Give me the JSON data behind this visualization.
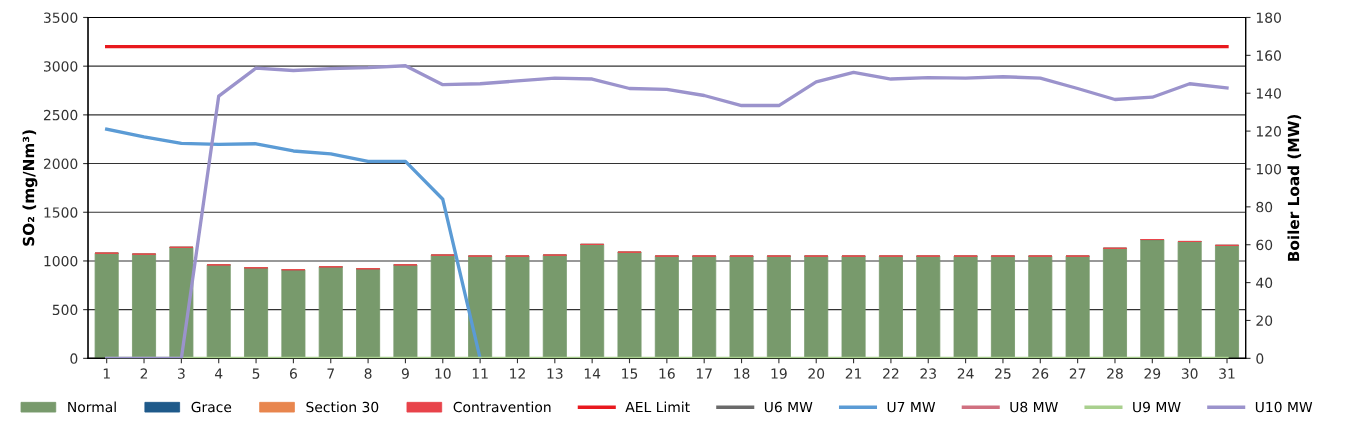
{
  "chart_data": {
    "type": "bar",
    "stacked": true,
    "ylabel": "SO₂ (mg/Nm³)",
    "y2label": "Boiler Load (MW)",
    "categories": [
      "1",
      "2",
      "3",
      "4",
      "5",
      "6",
      "7",
      "8",
      "9",
      "10",
      "11",
      "12",
      "13",
      "14",
      "15",
      "16",
      "17",
      "18",
      "19",
      "20",
      "21",
      "22",
      "23",
      "24",
      "25",
      "26",
      "27",
      "28",
      "29",
      "30",
      "31"
    ],
    "ylim": [
      0,
      3500
    ],
    "yticks": [
      0,
      500,
      1000,
      1500,
      2000,
      2500,
      3000,
      3500
    ],
    "y2lim": [
      0,
      180
    ],
    "y2ticks": [
      0,
      20,
      40,
      60,
      80,
      100,
      120,
      140,
      160,
      180
    ],
    "grid": "y",
    "legend": "bottom",
    "marker": "none",
    "line_style": "solid",
    "series": [
      {
        "name": "Normal",
        "color": "#789a6c",
        "values": [
          1080,
          1070,
          1140,
          960,
          930,
          910,
          940,
          920,
          960,
          1060,
          1050,
          1050,
          1060,
          1170,
          1090,
          1050,
          1050,
          1050,
          1050,
          1050,
          1050,
          1050,
          1050,
          1050,
          1050,
          1050,
          1050,
          1130,
          1220,
          1200,
          1160
        ]
      },
      {
        "name": "Grace",
        "color": "#1f5a8a",
        "values": [
          0,
          0,
          0,
          0,
          0,
          0,
          0,
          0,
          0,
          0,
          0,
          0,
          0,
          0,
          0,
          0,
          0,
          0,
          0,
          0,
          0,
          0,
          0,
          0,
          0,
          0,
          0,
          0,
          0,
          0,
          0
        ]
      },
      {
        "name": "Section 30",
        "color": "#e8864e",
        "values": [
          0,
          0,
          0,
          0,
          0,
          0,
          0,
          0,
          0,
          0,
          0,
          0,
          0,
          0,
          0,
          0,
          0,
          0,
          0,
          0,
          0,
          0,
          0,
          0,
          0,
          0,
          0,
          0,
          0,
          0,
          0
        ]
      },
      {
        "name": "Contravention",
        "color": "#e8434a",
        "values": [
          0,
          0,
          0,
          0,
          0,
          0,
          0,
          0,
          0,
          0,
          0,
          0,
          0,
          0,
          0,
          0,
          0,
          0,
          0,
          0,
          0,
          0,
          0,
          0,
          0,
          0,
          0,
          0,
          0,
          0,
          0
        ]
      },
      {
        "name": "AEL Limit",
        "type": "line",
        "color": "#e8191e",
        "values": [
          3200,
          3200,
          3200,
          3200,
          3200,
          3200,
          3200,
          3200,
          3200,
          3200,
          3200,
          3200,
          3200,
          3200,
          3200,
          3200,
          3200,
          3200,
          3200,
          3200,
          3200,
          3200,
          3200,
          3200,
          3200,
          3200,
          3200,
          3200,
          3200,
          3200,
          3200
        ]
      },
      {
        "name": "U6 MW",
        "type": "line",
        "axis": "y2",
        "color": "#6a6a6a",
        "values": [
          null,
          null,
          null,
          null,
          null,
          null,
          null,
          null,
          null,
          null,
          null,
          null,
          null,
          null,
          null,
          null,
          null,
          null,
          null,
          null,
          null,
          null,
          null,
          null,
          null,
          null,
          null,
          null,
          null,
          null,
          null
        ]
      },
      {
        "name": "U7 MW",
        "type": "line",
        "axis": "y2",
        "color": "#5b9bd5",
        "values": [
          121,
          117,
          113.5,
          113,
          113.3,
          109.5,
          108,
          104,
          104,
          84,
          0,
          null,
          null,
          null,
          null,
          null,
          null,
          null,
          null,
          null,
          null,
          null,
          null,
          null,
          null,
          null,
          null,
          null,
          null,
          null,
          null
        ]
      },
      {
        "name": "U8 MW",
        "type": "line",
        "axis": "y2",
        "color": "#d07080",
        "values": [
          null,
          null,
          null,
          null,
          null,
          null,
          null,
          null,
          null,
          null,
          null,
          null,
          null,
          null,
          null,
          null,
          null,
          null,
          null,
          null,
          null,
          null,
          null,
          null,
          null,
          null,
          null,
          null,
          null,
          null,
          null
        ]
      },
      {
        "name": "U9 MW",
        "type": "line",
        "axis": "y2",
        "color": "#a9d08e",
        "values": [
          0,
          0,
          0,
          0,
          0,
          0,
          0,
          0,
          0,
          0,
          0,
          0,
          0,
          0,
          0,
          0,
          0,
          0,
          0,
          0,
          0,
          0,
          0,
          0,
          0,
          0,
          0,
          0,
          0,
          0,
          0
        ]
      },
      {
        "name": "U10 MW",
        "type": "line",
        "axis": "y2",
        "color": "#9b93cc",
        "values": [
          0,
          0,
          0,
          138.5,
          153.3,
          152,
          153,
          153.5,
          154.5,
          144.5,
          145,
          146.5,
          148,
          147.5,
          142.5,
          142,
          138.8,
          133.5,
          133.5,
          146,
          151,
          147.5,
          148.2,
          148,
          148.7,
          148,
          142.5,
          136.7,
          137.9,
          145,
          142.8
        ]
      }
    ]
  }
}
